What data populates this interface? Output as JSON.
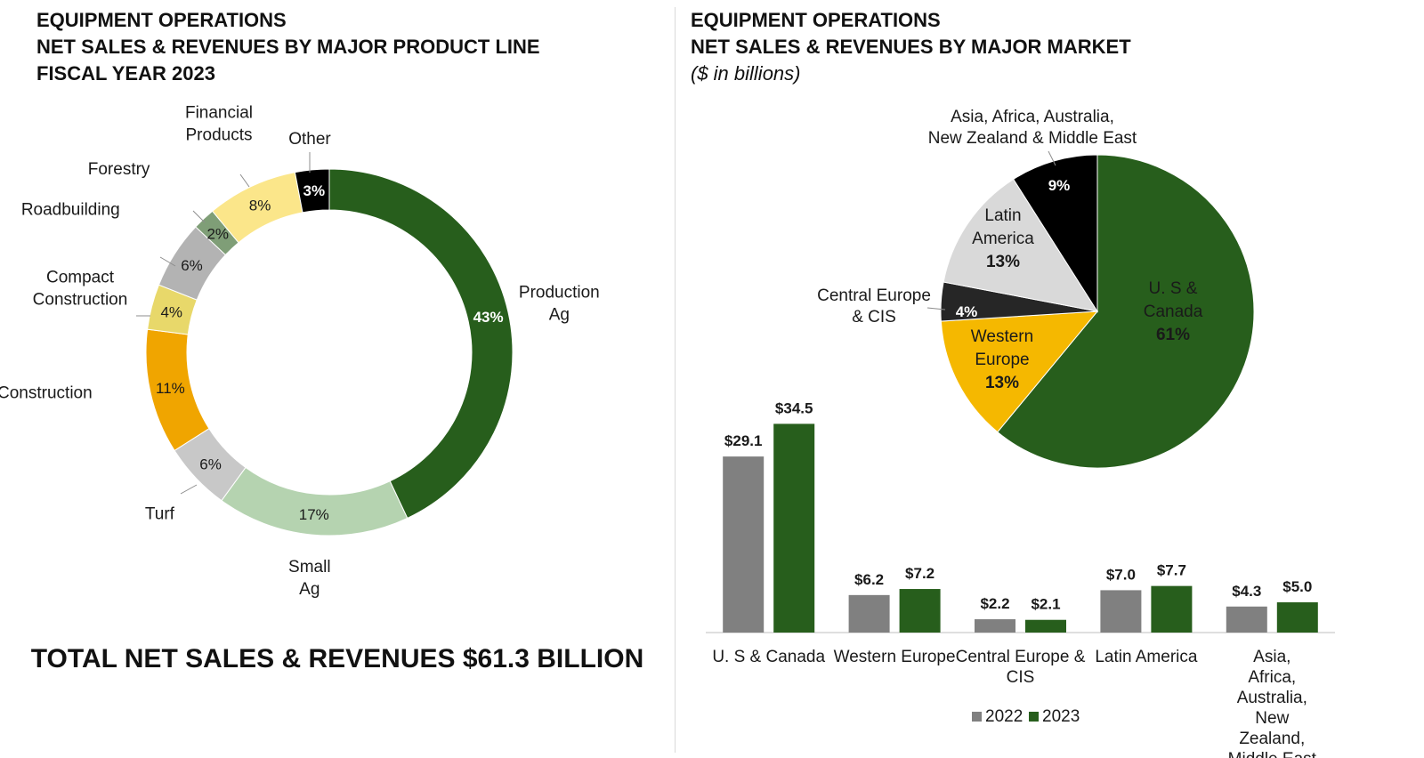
{
  "left_title": {
    "line1": "EQUIPMENT OPERATIONS",
    "line2": "NET SALES & REVENUES BY MAJOR PRODUCT LINE",
    "line3": "FISCAL YEAR 2023"
  },
  "right_title": {
    "line1": "EQUIPMENT OPERATIONS",
    "line2": "NET SALES & REVENUES BY MAJOR MARKET",
    "line3": "($ in billions)"
  },
  "total_text": "TOTAL NET SALES & REVENUES $61.3 BILLION",
  "chart_data": [
    {
      "type": "pie",
      "variant": "donut",
      "slices": [
        {
          "label": "Production Ag",
          "value": 43,
          "display": "43%",
          "color": "#275e1c"
        },
        {
          "label": "Small Ag",
          "value": 17,
          "display": "17%",
          "color": "#b5d3b0"
        },
        {
          "label": "Turf",
          "value": 6,
          "display": "6%",
          "color": "#c8c8c8"
        },
        {
          "label": "Construction",
          "value": 11,
          "display": "11%",
          "color": "#f0a500"
        },
        {
          "label": "Compact Construction",
          "value": 4,
          "display": "4%",
          "color": "#e8d86a"
        },
        {
          "label": "Roadbuilding",
          "value": 6,
          "display": "6%",
          "color": "#b3b3b3"
        },
        {
          "label": "Forestry",
          "value": 2,
          "display": "2%",
          "color": "#7f9e77"
        },
        {
          "label": "Financial Products",
          "value": 8,
          "display": "8%",
          "color": "#fbe68a"
        },
        {
          "label": "Other",
          "value": 3,
          "display": "3%",
          "color": "#000000"
        }
      ]
    },
    {
      "type": "pie",
      "slices": [
        {
          "label": "U. S & Canada",
          "value": 61,
          "display": "61%",
          "color": "#275e1c"
        },
        {
          "label": "Western Europe",
          "value": 13,
          "display": "13%",
          "color": "#f5b800"
        },
        {
          "label": "Central Europe & CIS",
          "value": 4,
          "display": "4%",
          "color": "#262626"
        },
        {
          "label": "Latin America",
          "value": 13,
          "display": "13%",
          "color": "#d9d9d9"
        },
        {
          "label": "Asia, Africa, Australia, New Zealand & Middle East",
          "value": 9,
          "display": "9%",
          "color": "#000000"
        }
      ]
    },
    {
      "type": "bar",
      "categories": [
        "U. S & Canada",
        "Western Europe",
        "Central Europe & CIS",
        "Latin America",
        "Asia, Africa, Australia, New Zealand, Middle East"
      ],
      "series": [
        {
          "name": "2022",
          "values": [
            29.1,
            6.2,
            2.2,
            7.0,
            4.3
          ],
          "color": "#808080"
        },
        {
          "name": "2023",
          "values": [
            34.5,
            7.2,
            2.1,
            7.7,
            5.0
          ],
          "color": "#275e1c"
        }
      ],
      "value_prefix": "$",
      "legend_position": "bottom",
      "grid": false
    }
  ]
}
